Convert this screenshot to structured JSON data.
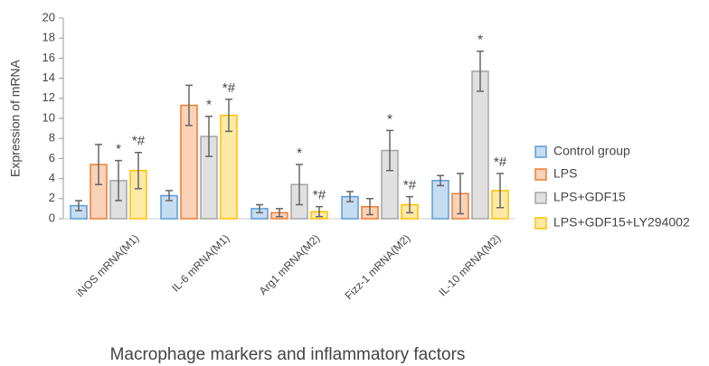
{
  "chart_data": {
    "type": "bar",
    "x_label": "Macrophage markers and inflammatory factors",
    "y_label": "Expression of mRNA",
    "categories": [
      "iNOS mRNA(M1)",
      "IL-6 mRNA(M1)",
      "Arg1 mRNA(M2)",
      "Fizz-1 mRNA(M2)",
      "IL-10 mRNA(M2)"
    ],
    "series": [
      {
        "name": "Control group",
        "color": "#5b9bd5",
        "values": [
          1.3,
          2.3,
          1.0,
          2.2,
          3.8
        ],
        "errors": [
          0.5,
          0.5,
          0.4,
          0.5,
          0.5
        ],
        "annotations": [
          null,
          null,
          null,
          null,
          null
        ]
      },
      {
        "name": "LPS",
        "color": "#ed7d31",
        "values": [
          5.4,
          11.3,
          0.6,
          1.2,
          2.5
        ],
        "errors": [
          2.0,
          2.0,
          0.4,
          0.8,
          2.0
        ],
        "annotations": [
          null,
          null,
          null,
          null,
          null
        ]
      },
      {
        "name": "LPS+GDF15",
        "color": "#a5a5a5",
        "values": [
          3.8,
          8.2,
          3.4,
          6.8,
          14.7
        ],
        "errors": [
          2.0,
          2.0,
          2.0,
          2.0,
          2.0
        ],
        "annotations": [
          "*",
          "*",
          "*",
          "*",
          "*"
        ]
      },
      {
        "name": "LPS+GDF15+LY294002",
        "color": "#ffc000",
        "values": [
          4.8,
          10.3,
          0.7,
          1.4,
          2.8
        ],
        "errors": [
          1.8,
          1.6,
          0.5,
          0.8,
          1.7
        ],
        "annotations": [
          "*#",
          "*#",
          "*#",
          "*#",
          "*#"
        ]
      }
    ],
    "ylim": [
      0,
      20
    ],
    "yticks": [
      0,
      2,
      4,
      6,
      8,
      10,
      12,
      14,
      16,
      18,
      20
    ],
    "grid": false,
    "legend": "right"
  }
}
